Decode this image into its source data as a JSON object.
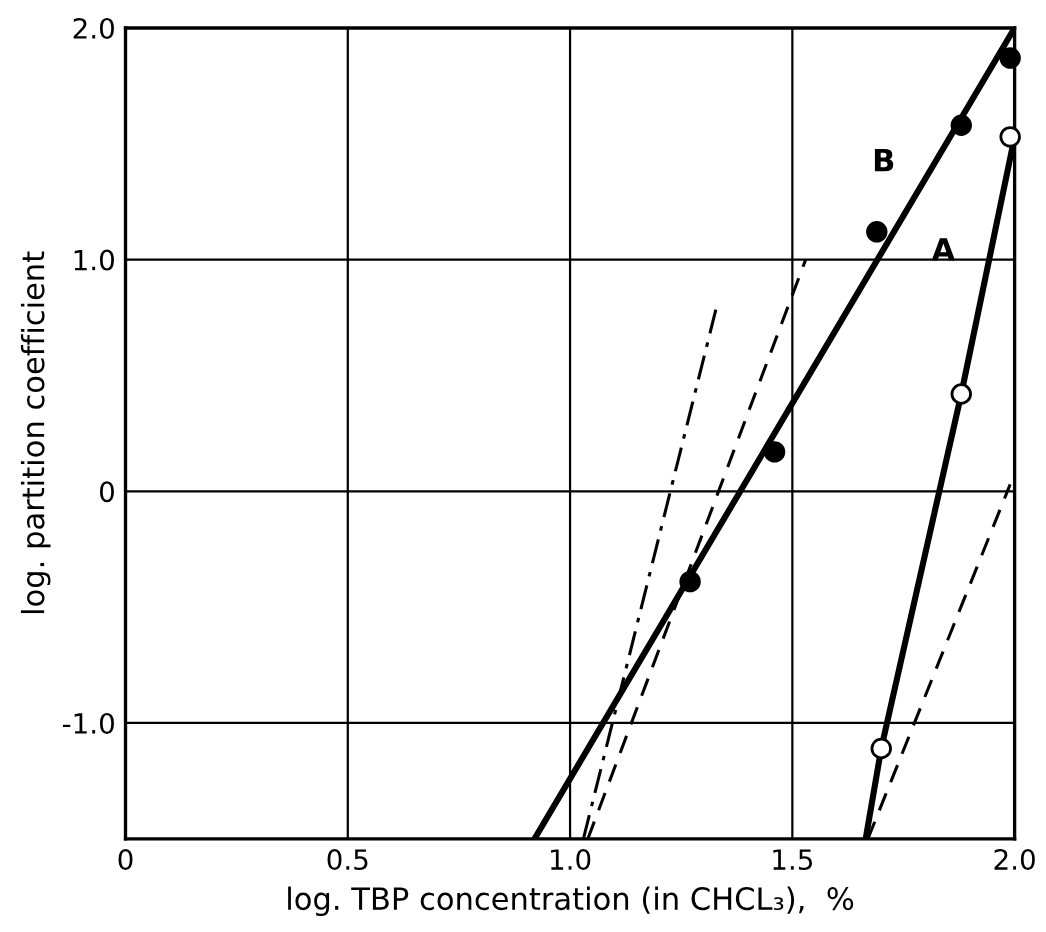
{
  "chart_data": {
    "type": "line",
    "xlabel": "log. TBP concentration (in CHCL₃),  %",
    "ylabel": "log. partition coefficient",
    "xlim": [
      0,
      2.0
    ],
    "ylim": [
      -1.5,
      2.0
    ],
    "xticks": [
      0,
      {
        "value": 0.5,
        "label": "0.5"
      },
      {
        "value": 1.0,
        "label": "1.0"
      },
      {
        "value": 1.5,
        "label": "1.5"
      },
      {
        "value": 2.0,
        "label": "2.0"
      }
    ],
    "yticks": [
      {
        "value": -1.0,
        "label": "-1.0"
      },
      0,
      {
        "value": 1.0,
        "label": "1.0"
      },
      {
        "value": 2.0,
        "label": "2.0"
      }
    ],
    "grid": true,
    "series": [
      {
        "name": "B",
        "color": "#000000",
        "line_style": "solid",
        "marker": "none",
        "x": [
          0.92,
          2.0
        ],
        "values": [
          -1.5,
          2.0
        ]
      },
      {
        "type": "scatter",
        "color": "#000000",
        "marker": "circle",
        "x": [
          1.27,
          1.46,
          1.69,
          1.88,
          1.99
        ],
        "values": [
          -0.39,
          0.17,
          1.12,
          1.58,
          1.87
        ]
      },
      {
        "name": "A",
        "color": "#000000",
        "line_style": "solid",
        "marker": "none",
        "x": [
          1.665,
          1.7,
          1.88,
          2.0
        ],
        "values": [
          -1.5,
          -1.11,
          0.42,
          1.53
        ]
      },
      {
        "type": "scatter",
        "color": "#ffffff",
        "marker": "circle",
        "x": [
          1.7,
          1.88,
          1.99
        ],
        "values": [
          -1.11,
          0.42,
          1.53
        ]
      },
      {
        "color": "#000000",
        "line_style": "dashed",
        "marker": "none",
        "x": [
          1.04,
          1.53
        ],
        "values": [
          -1.5,
          1.0
        ]
      },
      {
        "color": "#000000",
        "line_style": "dashdot",
        "marker": "none",
        "x": [
          1.03,
          1.33
        ],
        "values": [
          -1.5,
          0.8
        ]
      },
      {
        "color": "#000000",
        "line_style": "dashed",
        "marker": "none",
        "x": [
          1.67,
          1.99
        ],
        "values": [
          -1.5,
          0.03
        ]
      }
    ]
  }
}
